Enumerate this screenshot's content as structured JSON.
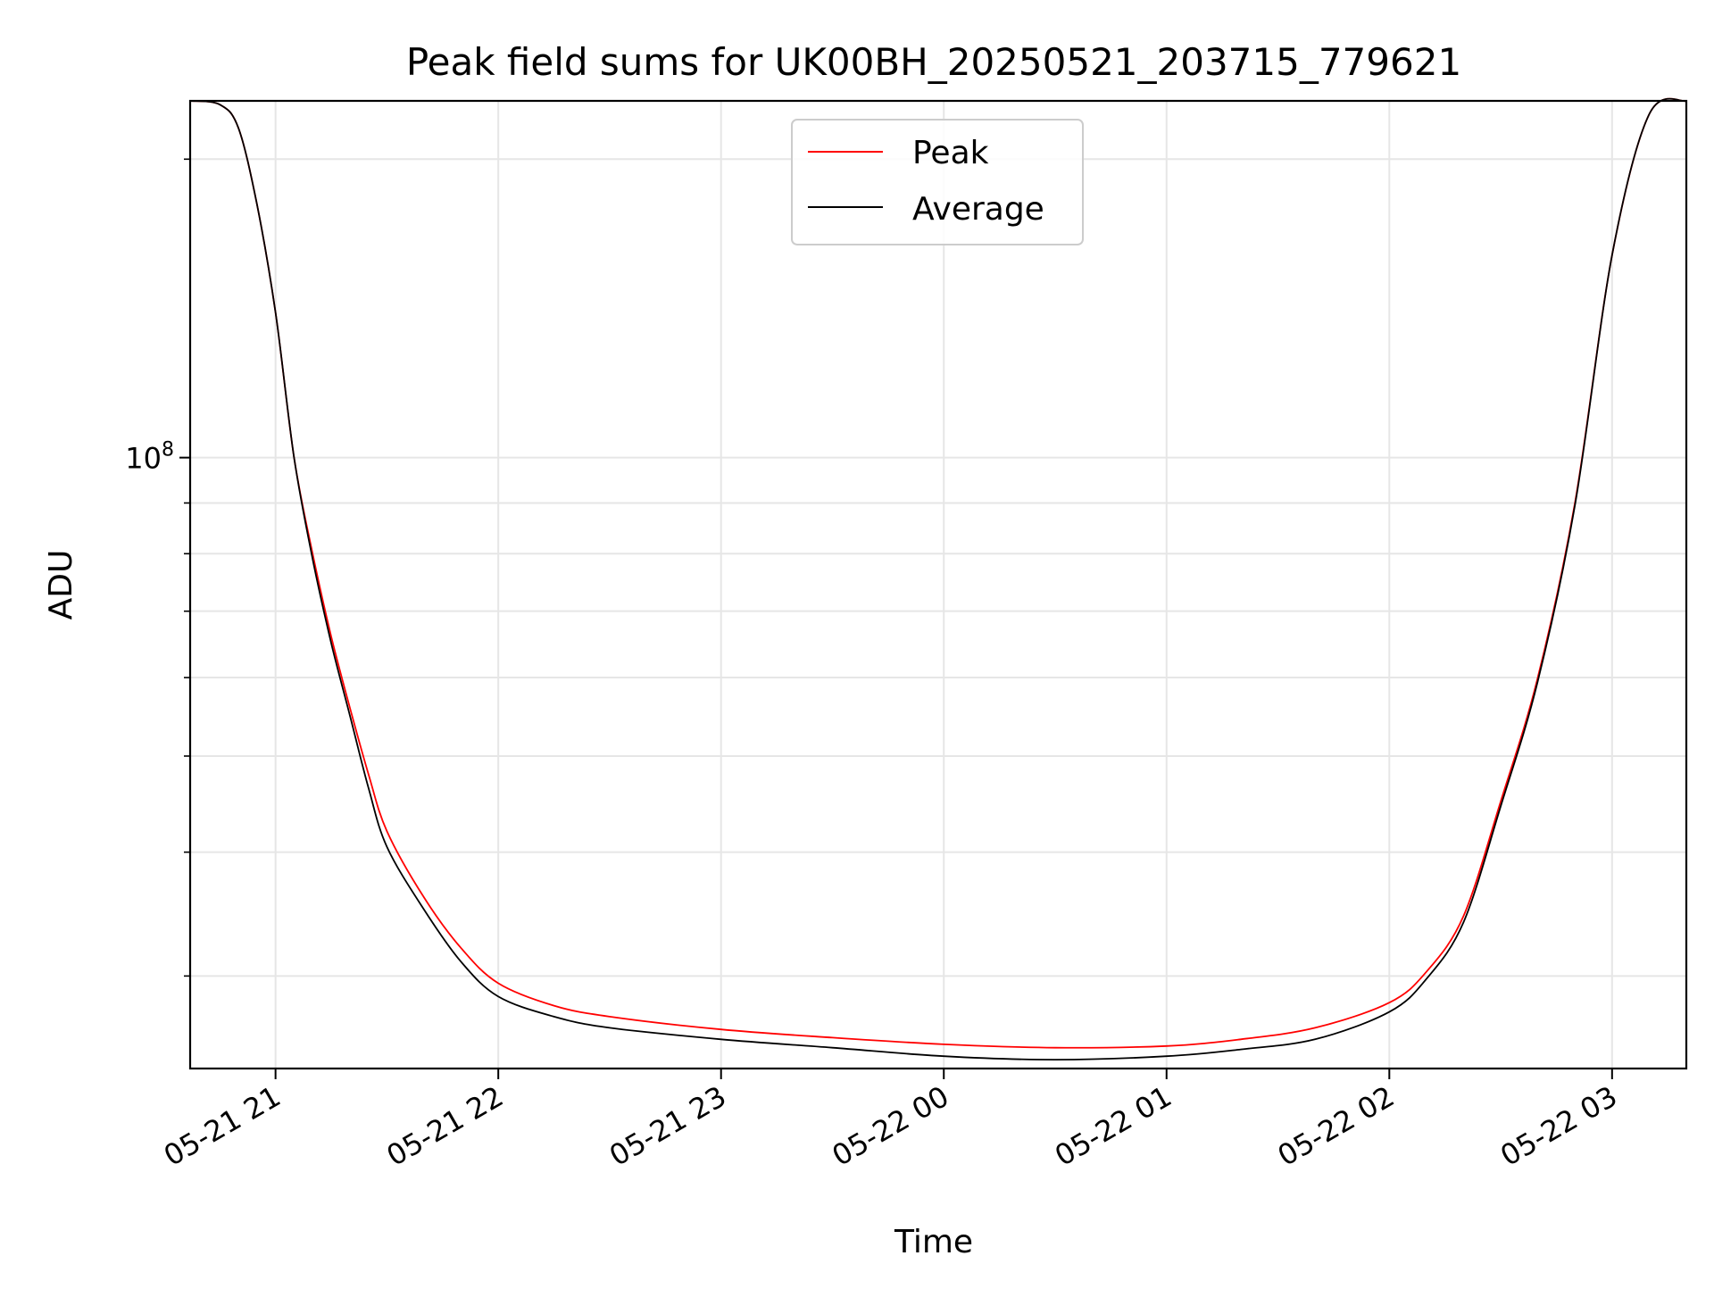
{
  "chart_data": {
    "type": "line",
    "title": "Peak field sums for UK00BH_20250521_203715_779621",
    "xlabel": "Time",
    "ylabel": "ADU",
    "y_scale": "log",
    "grid": true,
    "legend_position": "top-center",
    "xlim": [
      "2025-05-21 20:37",
      "2025-05-22 03:20"
    ],
    "ylim": [
      24200000,
      229000000
    ],
    "x_ticks": [
      {
        "value": "2025-05-21 21:00",
        "label": "05-21 21"
      },
      {
        "value": "2025-05-21 22:00",
        "label": "05-21 22"
      },
      {
        "value": "2025-05-21 23:00",
        "label": "05-21 23"
      },
      {
        "value": "2025-05-22 00:00",
        "label": "05-22 00"
      },
      {
        "value": "2025-05-22 01:00",
        "label": "05-22 01"
      },
      {
        "value": "2025-05-22 02:00",
        "label": "05-22 02"
      },
      {
        "value": "2025-05-22 03:00",
        "label": "05-22 03"
      }
    ],
    "y_major_ticks": [
      {
        "value": 100000000,
        "label_base": "10",
        "label_exp": "8"
      }
    ],
    "y_minor_ticks": [
      30000000,
      40000000,
      50000000,
      60000000,
      70000000,
      80000000,
      90000000,
      200000000
    ],
    "series": [
      {
        "name": "Peak",
        "color": "#ff0000",
        "x": [
          "2025-05-21 20:37",
          "2025-05-21 20:45",
          "2025-05-21 20:50",
          "2025-05-21 20:55",
          "2025-05-21 21:00",
          "2025-05-21 21:05",
          "2025-05-21 21:10",
          "2025-05-21 21:15",
          "2025-05-21 21:20",
          "2025-05-21 21:25",
          "2025-05-21 21:30",
          "2025-05-21 21:40",
          "2025-05-21 21:50",
          "2025-05-21 22:00",
          "2025-05-21 22:15",
          "2025-05-21 22:30",
          "2025-05-21 23:00",
          "2025-05-21 23:30",
          "2025-05-22 00:00",
          "2025-05-22 00:30",
          "2025-05-22 01:00",
          "2025-05-22 01:20",
          "2025-05-22 01:40",
          "2025-05-22 02:00",
          "2025-05-22 02:10",
          "2025-05-22 02:20",
          "2025-05-22 02:30",
          "2025-05-22 02:40",
          "2025-05-22 02:50",
          "2025-05-22 03:00",
          "2025-05-22 03:10",
          "2025-05-22 03:20"
        ],
        "y": [
          229000000,
          227000000,
          215000000,
          180000000,
          140000000,
          100000000,
          80000000,
          66000000,
          56000000,
          48000000,
          42000000,
          36000000,
          32000000,
          29500000,
          28000000,
          27300000,
          26500000,
          26000000,
          25600000,
          25400000,
          25500000,
          25900000,
          26600000,
          28200000,
          30300000,
          34500000,
          45000000,
          60000000,
          90000000,
          160000000,
          222000000,
          229000000
        ]
      },
      {
        "name": "Average",
        "color": "#000000",
        "x": [
          "2025-05-21 20:37",
          "2025-05-21 20:45",
          "2025-05-21 20:50",
          "2025-05-21 20:55",
          "2025-05-21 21:00",
          "2025-05-21 21:05",
          "2025-05-21 21:10",
          "2025-05-21 21:15",
          "2025-05-21 21:20",
          "2025-05-21 21:25",
          "2025-05-21 21:30",
          "2025-05-21 21:40",
          "2025-05-21 21:50",
          "2025-05-21 22:00",
          "2025-05-21 22:15",
          "2025-05-21 22:30",
          "2025-05-21 23:00",
          "2025-05-21 23:30",
          "2025-05-22 00:00",
          "2025-05-22 00:30",
          "2025-05-22 01:00",
          "2025-05-22 01:20",
          "2025-05-22 01:40",
          "2025-05-22 02:00",
          "2025-05-22 02:10",
          "2025-05-22 02:20",
          "2025-05-22 02:30",
          "2025-05-22 02:40",
          "2025-05-22 02:50",
          "2025-05-22 03:00",
          "2025-05-22 03:10",
          "2025-05-22 03:20"
        ],
        "y": [
          229000000,
          227000000,
          215000000,
          180000000,
          140000000,
          100000000,
          79000000,
          65000000,
          55000000,
          46500000,
          40500000,
          35000000,
          31000000,
          28600000,
          27300000,
          26600000,
          25900000,
          25400000,
          24900000,
          24700000,
          24900000,
          25300000,
          25900000,
          27600000,
          29800000,
          34000000,
          44500000,
          59500000,
          89500000,
          160000000,
          222000000,
          229000000
        ]
      }
    ]
  }
}
